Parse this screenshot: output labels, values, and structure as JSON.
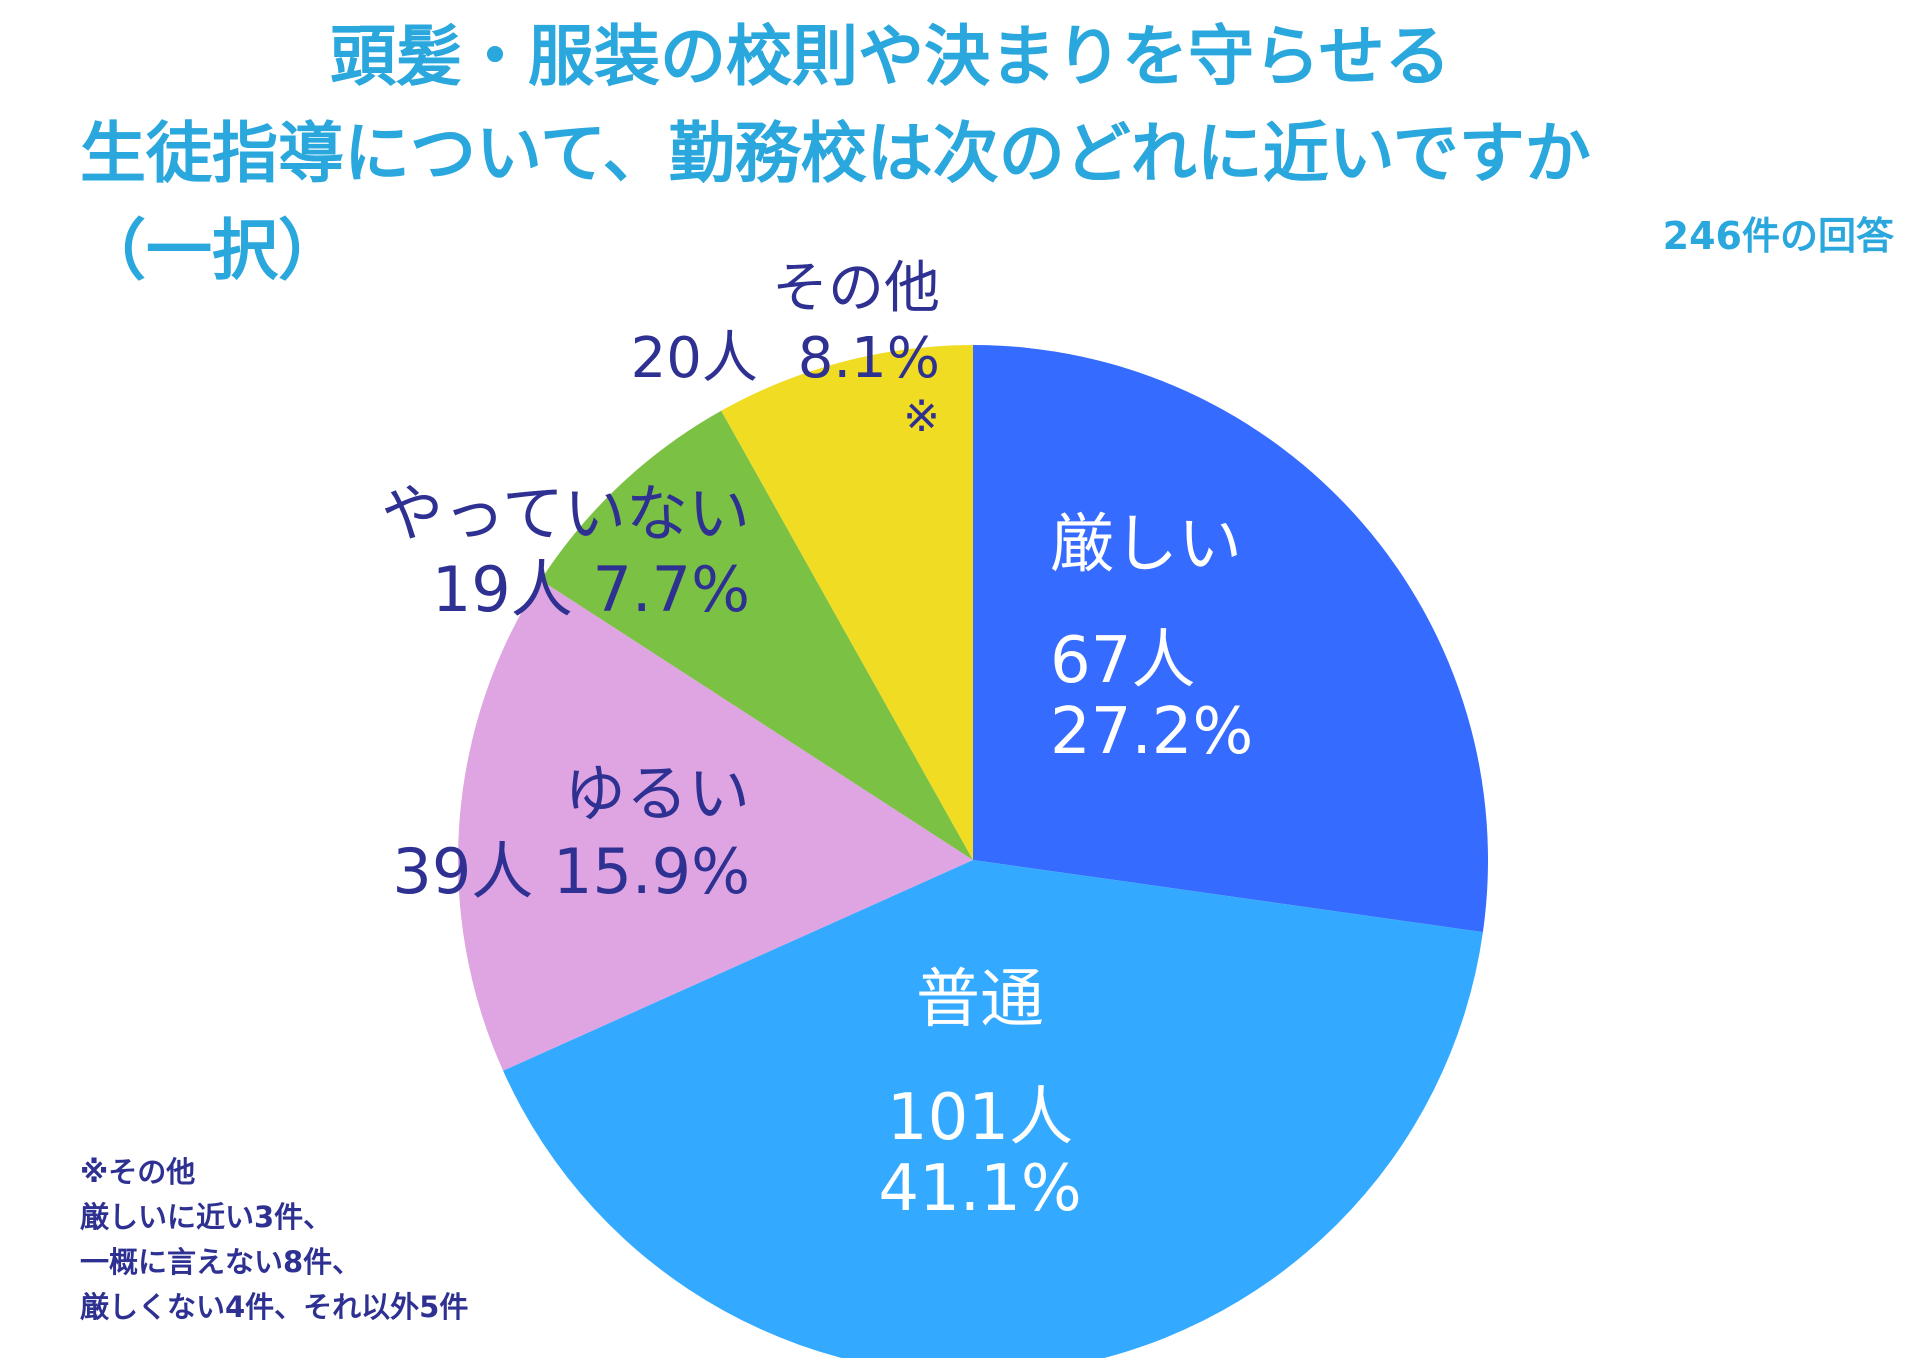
{
  "chart_data": {
    "type": "pie",
    "title_lines": [
      "頭髪・服装の校則や決まりを守らせる",
      "生徒指導について、勤務校は次のどれに近いですか",
      "（一択）"
    ],
    "responses": "246件の回答",
    "slices": [
      {
        "label": "厳しい",
        "count_label": "67人",
        "percent_label": "27.2%",
        "value": 67,
        "color": "#366bff"
      },
      {
        "label": "普通",
        "count_label": "101人",
        "percent_label": "41.1%",
        "value": 101,
        "color": "#33aaff"
      },
      {
        "label": "ゆるい",
        "count_label": "39人",
        "percent_label": "15.9%",
        "value": 39,
        "color": "#dea5e2"
      },
      {
        "label": "やっていない",
        "count_label": "19人",
        "percent_label": "7.7%",
        "value": 19,
        "color": "#7bc143"
      },
      {
        "label": "その他",
        "count_label": "20人",
        "percent_label": "8.1%",
        "value": 20,
        "color": "#f0dc22",
        "marker": "※"
      }
    ],
    "footnote": [
      "※その他",
      "厳しいに近い3件、",
      "一概に言えない8件、",
      "厳しくない4件、それ以外5件"
    ]
  }
}
